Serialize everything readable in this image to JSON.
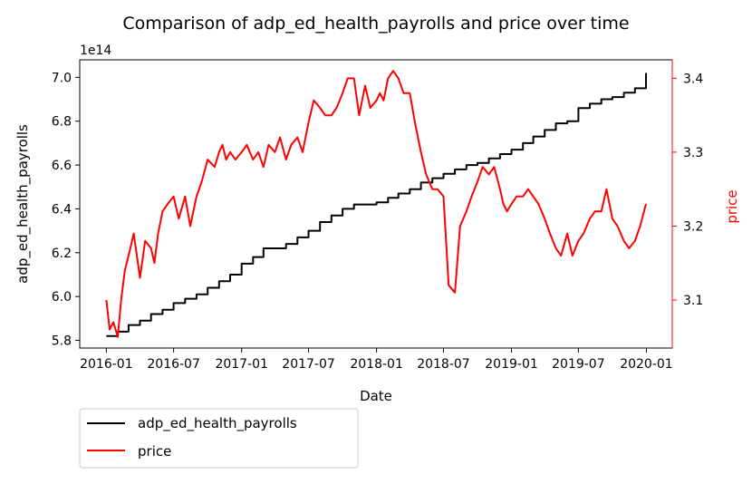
{
  "chart_data": {
    "type": "line",
    "title": "Comparison of adp_ed_health_payrolls and price over time",
    "xlabel": "Date",
    "ylabel_left": "adp_ed_health_payrolls",
    "ylabel_right": "price",
    "left_axis_offset_label": "1e14",
    "x_tick_labels": [
      "2016-01",
      "2016-07",
      "2017-01",
      "2017-07",
      "2018-01",
      "2018-07",
      "2019-01",
      "2019-07",
      "2020-01"
    ],
    "left_ticks": [
      5.8,
      6.0,
      6.2,
      6.4,
      6.6,
      6.8,
      7.0
    ],
    "left_tick_labels": [
      "5.8",
      "6.0",
      "6.2",
      "6.4",
      "6.6",
      "6.8",
      "7.0"
    ],
    "right_ticks": [
      3.1,
      3.2,
      3.3,
      3.4
    ],
    "right_tick_labels": [
      "3.1",
      "3.2",
      "3.3",
      "3.4"
    ],
    "xlim": [
      "2015-10-21",
      "2020-03-11"
    ],
    "ylim_left": [
      5.765,
      7.08
    ],
    "ylim_right": [
      3.035,
      3.425
    ],
    "legend_position": "below-left",
    "grid": false,
    "series": [
      {
        "name": "adp_ed_health_payrolls",
        "axis": "left",
        "color": "#000000",
        "step": true,
        "x": [
          "2016-01-01",
          "2016-02-01",
          "2016-03-01",
          "2016-04-01",
          "2016-05-01",
          "2016-06-01",
          "2016-07-01",
          "2016-08-01",
          "2016-09-01",
          "2016-10-01",
          "2016-11-01",
          "2016-12-01",
          "2017-01-01",
          "2017-02-01",
          "2017-03-01",
          "2017-04-01",
          "2017-05-01",
          "2017-06-01",
          "2017-07-01",
          "2017-08-01",
          "2017-09-01",
          "2017-10-01",
          "2017-11-01",
          "2017-12-01",
          "2018-01-01",
          "2018-02-01",
          "2018-03-01",
          "2018-04-01",
          "2018-05-01",
          "2018-06-01",
          "2018-07-01",
          "2018-08-01",
          "2018-09-01",
          "2018-10-01",
          "2018-11-01",
          "2018-12-01",
          "2019-01-01",
          "2019-02-01",
          "2019-03-01",
          "2019-04-01",
          "2019-05-01",
          "2019-06-01",
          "2019-07-01",
          "2019-08-01",
          "2019-09-01",
          "2019-10-01",
          "2019-11-01",
          "2019-12-01",
          "2019-12-31"
        ],
        "values": [
          5.82,
          5.84,
          5.87,
          5.89,
          5.92,
          5.94,
          5.97,
          5.99,
          6.01,
          6.04,
          6.07,
          6.1,
          6.15,
          6.18,
          6.22,
          6.22,
          6.24,
          6.27,
          6.3,
          6.34,
          6.37,
          6.4,
          6.42,
          6.42,
          6.43,
          6.45,
          6.47,
          6.49,
          6.52,
          6.54,
          6.56,
          6.58,
          6.6,
          6.61,
          6.63,
          6.65,
          6.67,
          6.7,
          6.73,
          6.76,
          6.79,
          6.8,
          6.86,
          6.88,
          6.9,
          6.91,
          6.93,
          6.95,
          7.02
        ]
      },
      {
        "name": "price",
        "axis": "right",
        "color": "#ff0000",
        "x": [
          "2016-01-01",
          "2016-01-10",
          "2016-01-20",
          "2016-02-01",
          "2016-02-10",
          "2016-02-20",
          "2016-03-01",
          "2016-03-15",
          "2016-04-01",
          "2016-04-15",
          "2016-05-01",
          "2016-05-10",
          "2016-05-20",
          "2016-06-01",
          "2016-06-15",
          "2016-07-01",
          "2016-07-15",
          "2016-08-01",
          "2016-08-15",
          "2016-09-01",
          "2016-09-15",
          "2016-10-01",
          "2016-10-20",
          "2016-11-01",
          "2016-11-10",
          "2016-11-20",
          "2016-12-01",
          "2016-12-15",
          "2017-01-01",
          "2017-01-15",
          "2017-02-01",
          "2017-02-15",
          "2017-03-01",
          "2017-03-15",
          "2017-04-01",
          "2017-04-15",
          "2017-05-01",
          "2017-05-15",
          "2017-06-01",
          "2017-06-15",
          "2017-07-01",
          "2017-07-15",
          "2017-08-01",
          "2017-08-15",
          "2017-09-01",
          "2017-09-15",
          "2017-10-01",
          "2017-10-15",
          "2017-11-01",
          "2017-11-15",
          "2017-12-01",
          "2017-12-15",
          "2018-01-01",
          "2018-01-10",
          "2018-01-20",
          "2018-02-01",
          "2018-02-15",
          "2018-03-01",
          "2018-03-15",
          "2018-04-01",
          "2018-04-15",
          "2018-05-01",
          "2018-05-15",
          "2018-06-01",
          "2018-06-15",
          "2018-07-01",
          "2018-07-15",
          "2018-08-01",
          "2018-08-15",
          "2018-09-01",
          "2018-09-15",
          "2018-10-01",
          "2018-10-15",
          "2018-11-01",
          "2018-11-15",
          "2018-12-01",
          "2018-12-10",
          "2018-12-20",
          "2019-01-01",
          "2019-01-15",
          "2019-02-01",
          "2019-02-15",
          "2019-03-01",
          "2019-03-15",
          "2019-04-01",
          "2019-04-15",
          "2019-05-01",
          "2019-05-15",
          "2019-06-01",
          "2019-06-15",
          "2019-07-01",
          "2019-07-15",
          "2019-08-01",
          "2019-08-15",
          "2019-09-01",
          "2019-09-15",
          "2019-10-01",
          "2019-10-15",
          "2019-11-01",
          "2019-11-15",
          "2019-12-01",
          "2019-12-15",
          "2019-12-31"
        ],
        "values": [
          3.1,
          3.06,
          3.07,
          3.05,
          3.1,
          3.14,
          3.16,
          3.19,
          3.13,
          3.18,
          3.17,
          3.15,
          3.19,
          3.22,
          3.23,
          3.24,
          3.21,
          3.24,
          3.2,
          3.24,
          3.26,
          3.29,
          3.28,
          3.3,
          3.31,
          3.29,
          3.3,
          3.29,
          3.3,
          3.31,
          3.29,
          3.3,
          3.28,
          3.31,
          3.3,
          3.32,
          3.29,
          3.31,
          3.32,
          3.3,
          3.34,
          3.37,
          3.36,
          3.35,
          3.35,
          3.36,
          3.38,
          3.4,
          3.4,
          3.35,
          3.39,
          3.36,
          3.37,
          3.38,
          3.37,
          3.4,
          3.41,
          3.4,
          3.38,
          3.38,
          3.34,
          3.3,
          3.27,
          3.25,
          3.25,
          3.24,
          3.12,
          3.11,
          3.2,
          3.22,
          3.24,
          3.26,
          3.28,
          3.27,
          3.28,
          3.25,
          3.23,
          3.22,
          3.23,
          3.24,
          3.24,
          3.25,
          3.24,
          3.23,
          3.21,
          3.19,
          3.17,
          3.16,
          3.19,
          3.16,
          3.18,
          3.19,
          3.21,
          3.22,
          3.22,
          3.25,
          3.21,
          3.2,
          3.18,
          3.17,
          3.18,
          3.2,
          3.23
        ]
      }
    ]
  }
}
